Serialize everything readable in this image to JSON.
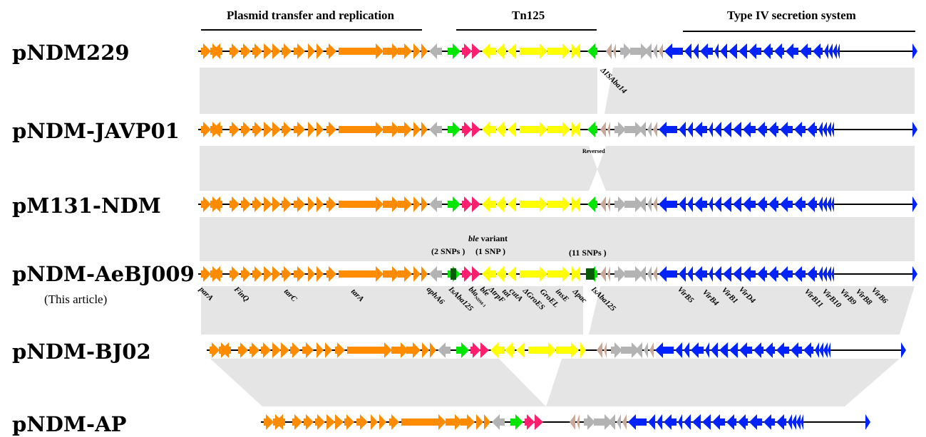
{
  "sections": {
    "transfer": "Plasmid transfer and replication",
    "tn125": "Tn125",
    "t4ss": "Type IV secretion system"
  },
  "plasmids": [
    {
      "name": "pNDM229"
    },
    {
      "name": "pNDM-JAVP01"
    },
    {
      "name": "pM131-NDM"
    },
    {
      "name": "pNDM-AeBJ009",
      "note": "(This article)"
    },
    {
      "name": "pNDM-BJ02"
    },
    {
      "name": "pNDM-AP"
    }
  ],
  "annotations": {
    "isaba14": "ΔISAba14",
    "reversed": "Reversed",
    "snps2": "(2 SNPs )",
    "ble_variant_italic": "ble",
    "ble_variant_rest": " variant",
    "snp1": "(1 SNP )",
    "snps11": "(11 SNPs )"
  },
  "gene_labels": {
    "parA": "parA",
    "finQ": "FinQ",
    "tarC": "tarC",
    "tarA": "tarA",
    "aphA6": "aphA6",
    "isaba125_left": "IsAba125",
    "bla": "bla",
    "bla_sub": "NDM-1",
    "ble": "ble",
    "trpF": "ΔtrpF",
    "tat": "tat",
    "cutA": "cutA",
    "groES": "ΔGroES",
    "groEL": "GroEL",
    "insE": "insE",
    "pac": "Δpac",
    "isaba125_right": "IsAba125",
    "virB5": "VirB5",
    "virB4": "VirB4",
    "virB1": "VirB1",
    "virD4": "VirD4",
    "virB11": "VirB11",
    "virB10": "VirB10",
    "virB9": "VirB9",
    "virB8": "VirB8",
    "virB6": "VirB6"
  },
  "colors": {
    "transfer": "#ff8c00",
    "is_element": "#00e600",
    "bla_ndm": "#ff1f6e",
    "tn125_genes": "#ffff00",
    "hypothetical": "#b3b3b3",
    "small_orf": "#c8a898",
    "t4ss": "#0022ff",
    "homology_block": "#e5e5e5"
  }
}
